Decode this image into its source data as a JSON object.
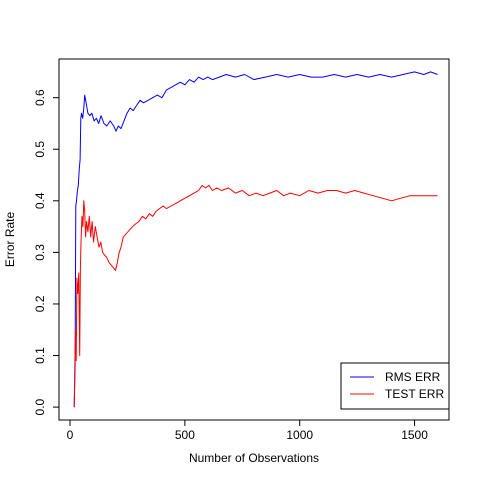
{
  "chart_data": {
    "type": "line",
    "xlabel": "Number of Observations",
    "ylabel": "Error Rate",
    "xlim": [
      -48,
      1650
    ],
    "ylim": [
      -0.025,
      0.675
    ],
    "x_ticks": [
      0,
      500,
      1000,
      1500
    ],
    "x_tick_labels": [
      "0",
      "500",
      "1000",
      "1500"
    ],
    "y_ticks": [
      0.0,
      0.1,
      0.2,
      0.3,
      0.4,
      0.5,
      0.6
    ],
    "y_tick_labels": [
      "0.0",
      "0.1",
      "0.2",
      "0.3",
      "0.4",
      "0.5",
      "0.6"
    ],
    "grid": false,
    "legend_position": "bottom-right",
    "series": [
      {
        "name": "RMS ERR",
        "color": "#0000ff",
        "points": [
          [
            18,
            0.0
          ],
          [
            22,
            0.08
          ],
          [
            25,
            0.39
          ],
          [
            28,
            0.4
          ],
          [
            32,
            0.42
          ],
          [
            36,
            0.43
          ],
          [
            40,
            0.46
          ],
          [
            44,
            0.48
          ],
          [
            47,
            0.56
          ],
          [
            50,
            0.57
          ],
          [
            55,
            0.56
          ],
          [
            60,
            0.58
          ],
          [
            64,
            0.605
          ],
          [
            70,
            0.59
          ],
          [
            78,
            0.57
          ],
          [
            86,
            0.565
          ],
          [
            95,
            0.57
          ],
          [
            105,
            0.555
          ],
          [
            115,
            0.56
          ],
          [
            125,
            0.55
          ],
          [
            135,
            0.565
          ],
          [
            148,
            0.55
          ],
          [
            160,
            0.545
          ],
          [
            175,
            0.555
          ],
          [
            190,
            0.545
          ],
          [
            200,
            0.535
          ],
          [
            210,
            0.545
          ],
          [
            222,
            0.54
          ],
          [
            235,
            0.555
          ],
          [
            248,
            0.57
          ],
          [
            262,
            0.58
          ],
          [
            275,
            0.575
          ],
          [
            290,
            0.585
          ],
          [
            305,
            0.595
          ],
          [
            320,
            0.59
          ],
          [
            340,
            0.595
          ],
          [
            360,
            0.6
          ],
          [
            380,
            0.605
          ],
          [
            400,
            0.6
          ],
          [
            420,
            0.615
          ],
          [
            440,
            0.62
          ],
          [
            460,
            0.625
          ],
          [
            480,
            0.63
          ],
          [
            500,
            0.625
          ],
          [
            520,
            0.635
          ],
          [
            540,
            0.63
          ],
          [
            560,
            0.64
          ],
          [
            580,
            0.635
          ],
          [
            600,
            0.64
          ],
          [
            620,
            0.635
          ],
          [
            650,
            0.64
          ],
          [
            680,
            0.645
          ],
          [
            720,
            0.64
          ],
          [
            760,
            0.645
          ],
          [
            800,
            0.635
          ],
          [
            850,
            0.64
          ],
          [
            900,
            0.645
          ],
          [
            950,
            0.64
          ],
          [
            1000,
            0.645
          ],
          [
            1050,
            0.64
          ],
          [
            1100,
            0.64
          ],
          [
            1150,
            0.645
          ],
          [
            1200,
            0.64
          ],
          [
            1250,
            0.645
          ],
          [
            1300,
            0.64
          ],
          [
            1350,
            0.645
          ],
          [
            1400,
            0.64
          ],
          [
            1450,
            0.645
          ],
          [
            1500,
            0.65
          ],
          [
            1540,
            0.645
          ],
          [
            1570,
            0.65
          ],
          [
            1600,
            0.645
          ]
        ]
      },
      {
        "name": "TEST ERR",
        "color": "#ff0000",
        "points": [
          [
            18,
            0.0
          ],
          [
            21,
            0.08
          ],
          [
            24,
            0.15
          ],
          [
            27,
            0.09
          ],
          [
            30,
            0.25
          ],
          [
            34,
            0.22
          ],
          [
            38,
            0.26
          ],
          [
            42,
            0.1
          ],
          [
            45,
            0.27
          ],
          [
            48,
            0.32
          ],
          [
            52,
            0.37
          ],
          [
            56,
            0.35
          ],
          [
            60,
            0.4
          ],
          [
            64,
            0.38
          ],
          [
            68,
            0.33
          ],
          [
            72,
            0.36
          ],
          [
            78,
            0.34
          ],
          [
            84,
            0.37
          ],
          [
            90,
            0.33
          ],
          [
            96,
            0.36
          ],
          [
            102,
            0.32
          ],
          [
            110,
            0.35
          ],
          [
            118,
            0.33
          ],
          [
            126,
            0.31
          ],
          [
            134,
            0.32
          ],
          [
            142,
            0.3
          ],
          [
            150,
            0.295
          ],
          [
            160,
            0.29
          ],
          [
            170,
            0.28
          ],
          [
            180,
            0.275
          ],
          [
            190,
            0.27
          ],
          [
            198,
            0.265
          ],
          [
            206,
            0.28
          ],
          [
            214,
            0.3
          ],
          [
            222,
            0.31
          ],
          [
            232,
            0.33
          ],
          [
            242,
            0.335
          ],
          [
            252,
            0.34
          ],
          [
            262,
            0.345
          ],
          [
            272,
            0.35
          ],
          [
            285,
            0.355
          ],
          [
            300,
            0.36
          ],
          [
            315,
            0.37
          ],
          [
            330,
            0.365
          ],
          [
            345,
            0.375
          ],
          [
            360,
            0.37
          ],
          [
            375,
            0.38
          ],
          [
            390,
            0.385
          ],
          [
            405,
            0.39
          ],
          [
            420,
            0.385
          ],
          [
            440,
            0.39
          ],
          [
            460,
            0.395
          ],
          [
            480,
            0.4
          ],
          [
            500,
            0.405
          ],
          [
            520,
            0.41
          ],
          [
            540,
            0.415
          ],
          [
            560,
            0.42
          ],
          [
            575,
            0.43
          ],
          [
            590,
            0.425
          ],
          [
            605,
            0.43
          ],
          [
            620,
            0.42
          ],
          [
            640,
            0.425
          ],
          [
            660,
            0.42
          ],
          [
            690,
            0.425
          ],
          [
            720,
            0.415
          ],
          [
            750,
            0.42
          ],
          [
            780,
            0.41
          ],
          [
            810,
            0.415
          ],
          [
            840,
            0.41
          ],
          [
            870,
            0.415
          ],
          [
            900,
            0.42
          ],
          [
            930,
            0.41
          ],
          [
            960,
            0.415
          ],
          [
            1000,
            0.41
          ],
          [
            1040,
            0.42
          ],
          [
            1080,
            0.415
          ],
          [
            1120,
            0.42
          ],
          [
            1160,
            0.42
          ],
          [
            1200,
            0.415
          ],
          [
            1240,
            0.42
          ],
          [
            1280,
            0.415
          ],
          [
            1320,
            0.41
          ],
          [
            1360,
            0.405
          ],
          [
            1400,
            0.4
          ],
          [
            1440,
            0.405
          ],
          [
            1480,
            0.41
          ],
          [
            1520,
            0.41
          ],
          [
            1560,
            0.41
          ],
          [
            1600,
            0.41
          ]
        ]
      }
    ]
  }
}
